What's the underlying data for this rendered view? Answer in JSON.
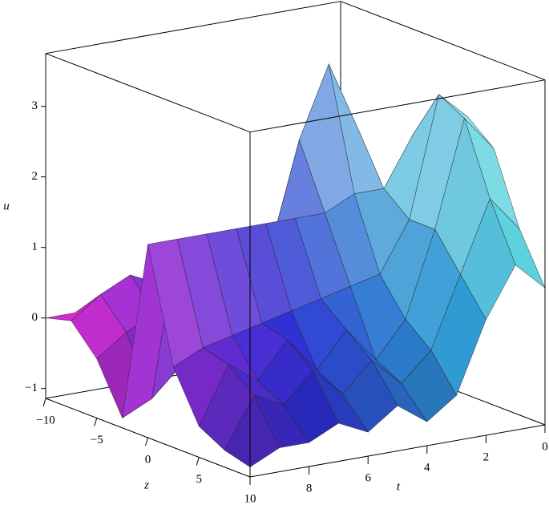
{
  "chart_data": {
    "type": "surface3d",
    "xlabel": "z",
    "ylabel": "t",
    "zlabel": "u",
    "xlim": [
      -10,
      10
    ],
    "ylim": [
      0,
      10
    ],
    "zlim": [
      -1.14,
      3.75
    ],
    "xticks": [
      {
        "value": -10,
        "label": "−10"
      },
      {
        "value": -5,
        "label": "−5"
      },
      0,
      5
    ],
    "yticks": [
      0,
      2,
      4,
      6,
      8,
      10
    ],
    "zticks": [
      {
        "value": -1,
        "label": "−1"
      },
      0,
      1,
      2,
      3
    ],
    "x": [
      -10,
      -7.5,
      -5,
      -2.5,
      0,
      2.5,
      5,
      7.5,
      10
    ],
    "y": [
      0,
      1,
      2,
      3,
      4,
      5,
      6,
      7,
      8,
      9,
      10
    ],
    "values": [
      [
        0,
        0,
        0,
        0,
        0,
        0,
        0,
        0,
        0,
        0,
        0
      ],
      [
        0,
        0,
        0.1,
        0.2,
        0.3,
        0.2,
        0.2,
        0.4,
        0.6,
        0.4,
        0.1
      ],
      [
        0,
        0.2,
        0.6,
        1.2,
        1.0,
        0.5,
        0.3,
        0.3,
        0.2,
        0,
        -0.3
      ],
      [
        0.3,
        1.0,
        2.5,
        3.5,
        2.5,
        1.0,
        0.3,
        0,
        -0.4,
        -0.8,
        -1.0
      ],
      [
        1.5,
        2.5,
        1.8,
        1.8,
        1.6,
        1.6,
        1.6,
        1.6,
        1.6,
        1.6,
        1.6
      ],
      [
        2.8,
        3.2,
        1.5,
        0.8,
        0.7,
        0.6,
        0.5,
        0.4,
        0.3,
        0.2,
        0.0
      ],
      [
        2.5,
        3.0,
        1.5,
        0.3,
        -0.2,
        0.3,
        -0.2,
        0.3,
        -0.2,
        0.1,
        -0.7
      ],
      [
        1.5,
        2.0,
        1.0,
        0.0,
        -0.4,
        0.0,
        -0.4,
        0.0,
        -0.4,
        -0.2,
        -0.9
      ],
      [
        0.8,
        1.2,
        0.5,
        -0.5,
        -0.8,
        -0.5,
        -0.8,
        -0.6,
        -0.8,
        -0.8,
        -1.0
      ]
    ]
  }
}
